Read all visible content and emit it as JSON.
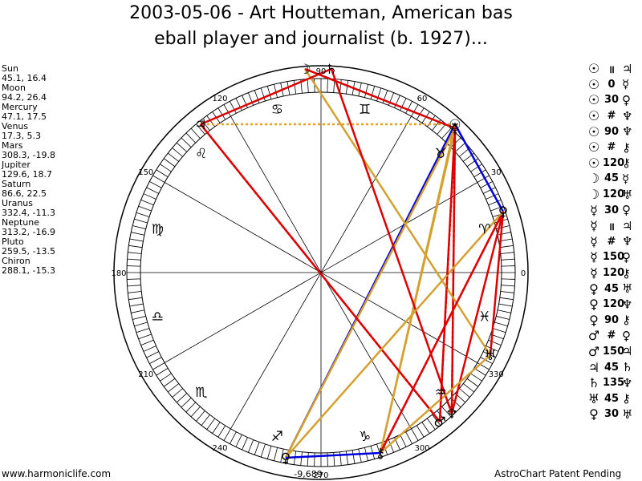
{
  "title": {
    "line1": "2003-05-06 - Art Houtteman, American bas",
    "line2": "eball player and journalist (b. 1927)..."
  },
  "planets": [
    {
      "name": "Sun",
      "glyph": "☉",
      "pos": "45.1, 16.4",
      "lon": 45.1
    },
    {
      "name": "Moon",
      "glyph": "☽",
      "pos": "94.2, 26.4",
      "lon": 94.2
    },
    {
      "name": "Mercury",
      "glyph": "☿",
      "pos": "47.1, 17.5",
      "lon": 47.1
    },
    {
      "name": "Venus",
      "glyph": "♀",
      "pos": "17.3, 5.3",
      "lon": 17.3
    },
    {
      "name": "Mars",
      "glyph": "♂",
      "pos": "308.3, -19.8",
      "lon": 308.3
    },
    {
      "name": "Jupiter",
      "glyph": "♃",
      "pos": "129.6, 18.7",
      "lon": 129.6
    },
    {
      "name": "Saturn",
      "glyph": "♄",
      "pos": "86.6, 22.5",
      "lon": 86.6
    },
    {
      "name": "Uranus",
      "glyph": "♅",
      "pos": "332.4, -11.3",
      "lon": 332.4
    },
    {
      "name": "Neptune",
      "glyph": "♆",
      "pos": "313.2, -16.9",
      "lon": 313.2
    },
    {
      "name": "Pluto",
      "glyph": "♀",
      "pos": "259.5, -13.5",
      "lon": 259.5
    },
    {
      "name": "Chiron",
      "glyph": "⚷",
      "pos": "288.1, -15.3",
      "lon": 288.1
    }
  ],
  "degree_labels": [
    {
      "text": "0",
      "deg": 0
    },
    {
      "text": "30",
      "deg": 30
    },
    {
      "text": "60",
      "deg": 60
    },
    {
      "text": "90",
      "deg": 90
    },
    {
      "text": "120",
      "deg": 120
    },
    {
      "text": "150",
      "deg": 150
    },
    {
      "text": "180",
      "deg": 180
    },
    {
      "text": "210",
      "deg": 210
    },
    {
      "text": "240",
      "deg": 240
    },
    {
      "text": "270",
      "deg": 270
    },
    {
      "text": "300",
      "deg": 300
    },
    {
      "text": "330",
      "deg": 330
    }
  ],
  "signs": [
    {
      "glyph": "♉",
      "deg": 45
    },
    {
      "glyph": "♊",
      "deg": 75
    },
    {
      "glyph": "♋",
      "deg": 105
    },
    {
      "glyph": "♌",
      "deg": 135
    },
    {
      "glyph": "♍",
      "deg": 165
    },
    {
      "glyph": "♎",
      "deg": 195
    },
    {
      "glyph": "♏",
      "deg": 225
    },
    {
      "glyph": "♐",
      "deg": 255
    },
    {
      "glyph": "♑",
      "deg": 285
    },
    {
      "glyph": "♒",
      "deg": 315
    },
    {
      "glyph": "♓",
      "deg": 345
    },
    {
      "glyph": "♈",
      "deg": 15
    }
  ],
  "extra_label": "-9,689",
  "aspects": [
    {
      "p1": "☉",
      "sym": "॥",
      "p2": "♃"
    },
    {
      "p1": "☉",
      "sym": "0",
      "p2": "☿"
    },
    {
      "p1": "☉",
      "sym": "30",
      "p2": "♀"
    },
    {
      "p1": "☉",
      "sym": "#",
      "p2": "♆"
    },
    {
      "p1": "☉",
      "sym": "90",
      "p2": "♆"
    },
    {
      "p1": "☉",
      "sym": "#",
      "p2": "⚷"
    },
    {
      "p1": "☉",
      "sym": "120",
      "p2": "⚷"
    },
    {
      "p1": "☽",
      "sym": "45",
      "p2": "☿"
    },
    {
      "p1": "☽",
      "sym": "120",
      "p2": "♅"
    },
    {
      "p1": "☿",
      "sym": "30",
      "p2": "♀"
    },
    {
      "p1": "☿",
      "sym": "॥",
      "p2": "♃"
    },
    {
      "p1": "☿",
      "sym": "#",
      "p2": "♆"
    },
    {
      "p1": "☿",
      "sym": "150",
      "p2": "♀"
    },
    {
      "p1": "☿",
      "sym": "120",
      "p2": "⚷"
    },
    {
      "p1": "♀",
      "sym": "45",
      "p2": "♅"
    },
    {
      "p1": "♀",
      "sym": "120",
      "p2": "♆"
    },
    {
      "p1": "♀",
      "sym": "90",
      "p2": "⚷"
    },
    {
      "p1": "♂",
      "sym": "#",
      "p2": "♀"
    },
    {
      "p1": "♂",
      "sym": "150",
      "p2": "♃"
    },
    {
      "p1": "♃",
      "sym": "45",
      "p2": "♄"
    },
    {
      "p1": "♄",
      "sym": "135",
      "p2": "♆"
    },
    {
      "p1": "♅",
      "sym": "45",
      "p2": "⚷"
    },
    {
      "p1": "♀",
      "sym": "30",
      "p2": "♅"
    }
  ],
  "aspect_lines": [
    {
      "from": "Sun",
      "to": "Jupiter",
      "color": "#e8a020",
      "style": "dotted"
    },
    {
      "from": "Sun",
      "to": "Pluto",
      "color": "#0000dd",
      "style": "solid"
    },
    {
      "from": "Sun",
      "to": "Mars",
      "color": "#dd0000",
      "style": "solid"
    },
    {
      "from": "Sun",
      "to": "Neptune",
      "color": "#dd0000",
      "style": "dotted"
    },
    {
      "from": "Sun",
      "to": "Chiron",
      "color": "#d4a030",
      "style": "solid"
    },
    {
      "from": "Sun",
      "to": "Venus",
      "color": "#0000dd",
      "style": "solid"
    },
    {
      "from": "Mercury",
      "to": "Chiron",
      "color": "#d4a030",
      "style": "solid"
    },
    {
      "from": "Mercury",
      "to": "Pluto",
      "color": "#d4a030",
      "style": "solid"
    },
    {
      "from": "Mercury",
      "to": "Neptune",
      "color": "#dd0000",
      "style": "solid"
    },
    {
      "from": "Moon",
      "to": "Uranus",
      "color": "#d4a030",
      "style": "solid"
    },
    {
      "from": "Moon",
      "to": "Mercury",
      "color": "#dd0000",
      "style": "solid"
    },
    {
      "from": "Saturn",
      "to": "Neptune",
      "color": "#dd0000",
      "style": "solid"
    },
    {
      "from": "Saturn",
      "to": "Jupiter",
      "color": "#dd0000",
      "style": "solid"
    },
    {
      "from": "Jupiter",
      "to": "Mars",
      "color": "#dd0000",
      "style": "solid"
    },
    {
      "from": "Jupiter",
      "to": "Mars",
      "color": "#dd0000",
      "style": "dotted"
    },
    {
      "from": "Venus",
      "to": "Uranus",
      "color": "#dd0000",
      "style": "solid"
    },
    {
      "from": "Venus",
      "to": "Neptune",
      "color": "#dd0000",
      "style": "solid"
    },
    {
      "from": "Venus",
      "to": "Chiron",
      "color": "#dd0000",
      "style": "solid"
    },
    {
      "from": "Venus",
      "to": "Pluto",
      "color": "#d4a030",
      "style": "solid"
    },
    {
      "from": "Uranus",
      "to": "Chiron",
      "color": "#d4a030",
      "style": "solid"
    },
    {
      "from": "Pluto",
      "to": "Chiron",
      "color": "#0000dd",
      "style": "solid"
    },
    {
      "from": "Mercury",
      "to": "Mars",
      "color": "#dd0000",
      "style": "dotted"
    },
    {
      "from": "Venus",
      "to": "Chiron",
      "color": "#dd0000",
      "style": "dotted"
    }
  ],
  "footer": {
    "left": "www.harmoniclife.com",
    "right": "AstroChart Patent Pending"
  }
}
